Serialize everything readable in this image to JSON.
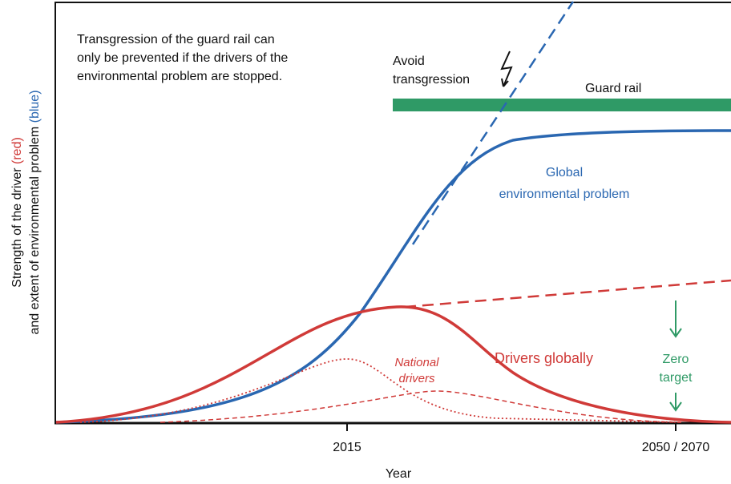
{
  "y_axis_label": {
    "line1": {
      "text": "Strength of the driver ",
      "highlight": "(red)"
    },
    "line2": {
      "text": "and extent of environmental problem ",
      "highlight": "(blue)"
    }
  },
  "x_axis_label": "Year",
  "x_ticks": [
    "2015",
    "2050 / 2070"
  ],
  "note": [
    "Transgression of the guard rail can",
    "only be prevented if the drivers of the",
    "environmental problem are stopped."
  ],
  "avoid": [
    "Avoid",
    "transgression"
  ],
  "guard_rail": "Guard rail",
  "global_problem": [
    "Global",
    "environmental problem"
  ],
  "national_drivers": [
    "National",
    "drivers"
  ],
  "drivers_globally": "Drivers globally",
  "zero_target": [
    "Zero",
    "target"
  ]
}
